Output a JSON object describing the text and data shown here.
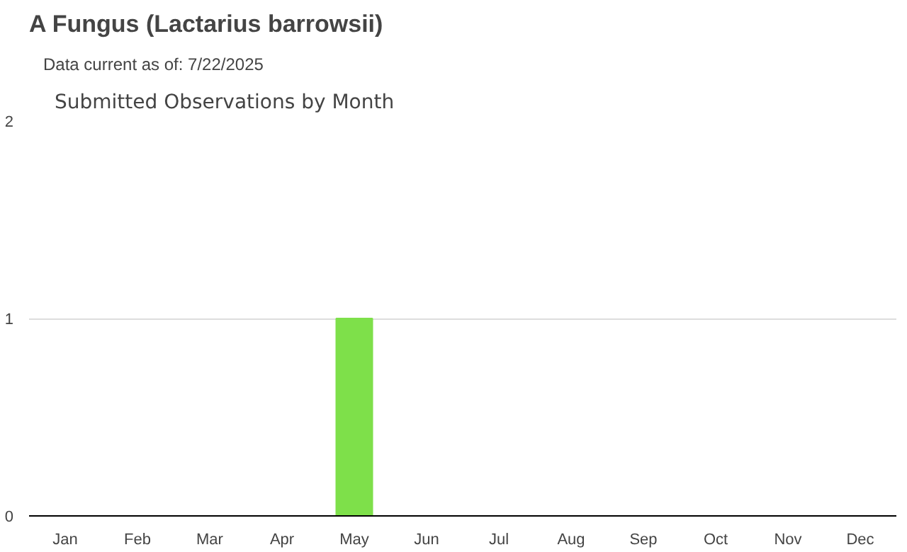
{
  "chart_data": {
    "type": "bar",
    "title": "A Fungus   (Lactarius barrowsii)",
    "subtitle": "Data current as of: 7/22/2025",
    "annotations": [
      "Submitted Observations by Month"
    ],
    "categories": [
      "Jan",
      "Feb",
      "Mar",
      "Apr",
      "May",
      "Jun",
      "Jul",
      "Aug",
      "Sep",
      "Oct",
      "Nov",
      "Dec"
    ],
    "values": [
      0,
      0,
      0,
      0,
      1,
      0,
      0,
      0,
      0,
      0,
      0,
      0
    ],
    "color": "#7ee04a",
    "ylim": [
      0,
      2
    ],
    "yticks": [
      0,
      1,
      2
    ],
    "grid": "y"
  }
}
